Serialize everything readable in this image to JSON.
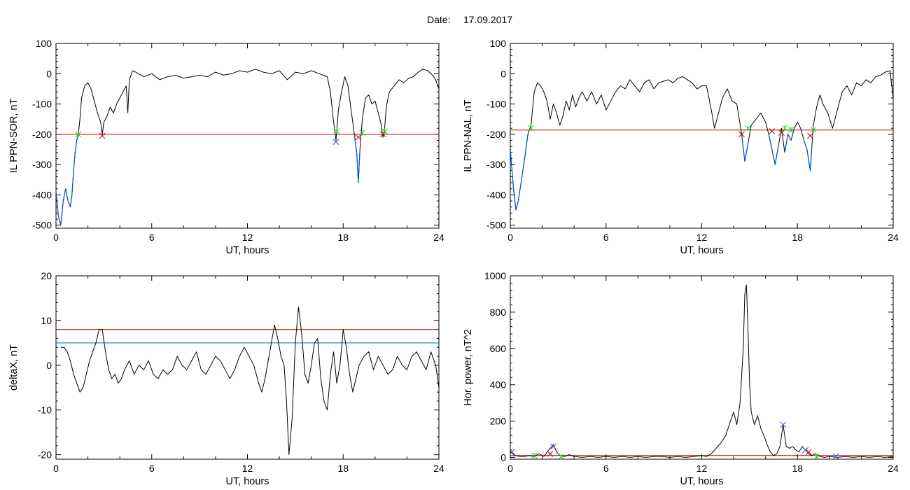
{
  "header": {
    "date_label": "Date:",
    "date_value": "17.09.2017"
  },
  "colors": {
    "trace": "#000000",
    "threshold": "#cc0000",
    "below_threshold": "#0055cc",
    "threshold2": "#0066cc",
    "cross_marker": "#cc0000",
    "green_marker": "#33cc33",
    "blue_marker": "#3355dd"
  },
  "chart_data": [
    {
      "type": "line",
      "panel": "top-left",
      "xlabel": "UT, hours",
      "ylabel": "IL PPN-SOR, nT",
      "xlim": [
        0,
        24
      ],
      "ylim": [
        -510,
        100
      ],
      "xticks": [
        0,
        6,
        12,
        18,
        24
      ],
      "yticks": [
        100,
        0,
        -100,
        -200,
        -300,
        -400,
        -500
      ],
      "threshold": -200,
      "series": [
        {
          "x": [
            0,
            0.15,
            0.3,
            0.45,
            0.6,
            0.75,
            0.9,
            1.0,
            1.1,
            1.2,
            1.3,
            1.4,
            1.5,
            1.6,
            1.8,
            2.0,
            2.2,
            2.4,
            2.6,
            2.8,
            2.9,
            3.0,
            3.2,
            3.4,
            3.6,
            3.8,
            4.0,
            4.2,
            4.4,
            4.5,
            4.6,
            4.8,
            5.0,
            5.5,
            6,
            6.5,
            7,
            7.5,
            8,
            8.5,
            9,
            9.5,
            10,
            10.5,
            11,
            11.5,
            12,
            12.5,
            13,
            13.5,
            14,
            14.5,
            15,
            15.5,
            16,
            16.5,
            17,
            17.2,
            17.4,
            17.55,
            17.7,
            17.9,
            18.1,
            18.3,
            18.5,
            18.7,
            18.85,
            18.95,
            19.05,
            19.2,
            19.4,
            19.6,
            19.8,
            20.0,
            20.2,
            20.35,
            20.5,
            20.6,
            20.7,
            20.9,
            21.2,
            21.5,
            21.8,
            22.1,
            22.4,
            22.7,
            23.0,
            23.3,
            23.6,
            23.8,
            24.0
          ],
          "y": [
            -390,
            -470,
            -500,
            -420,
            -380,
            -420,
            -440,
            -400,
            -320,
            -260,
            -220,
            -200,
            -150,
            -80,
            -40,
            -30,
            -50,
            -90,
            -130,
            -160,
            -200,
            -160,
            -140,
            -110,
            -130,
            -100,
            -80,
            -60,
            -40,
            -130,
            -20,
            10,
            5,
            -10,
            0,
            -20,
            -10,
            -5,
            -15,
            -10,
            -5,
            -10,
            5,
            -5,
            0,
            10,
            5,
            15,
            5,
            0,
            10,
            -20,
            5,
            0,
            10,
            0,
            -10,
            -60,
            -160,
            -220,
            -120,
            -60,
            -10,
            -40,
            -120,
            -200,
            -260,
            -360,
            -250,
            -150,
            -80,
            -70,
            -100,
            -90,
            -130,
            -160,
            -210,
            -180,
            -110,
            -60,
            -40,
            -20,
            -30,
            -15,
            -10,
            5,
            15,
            10,
            -5,
            -20,
            -50
          ],
          "markers": [
            {
              "x": 1.4,
              "y": -200,
              "color": "green"
            },
            {
              "x": 2.9,
              "y": -205,
              "color": "red"
            },
            {
              "x": 17.55,
              "y": -225,
              "color": "blue"
            },
            {
              "x": 17.6,
              "y": -190,
              "color": "green"
            },
            {
              "x": 18.95,
              "y": -210,
              "color": "red"
            },
            {
              "x": 19.2,
              "y": -195,
              "color": "green"
            },
            {
              "x": 20.5,
              "y": -200,
              "color": "red"
            },
            {
              "x": 20.6,
              "y": -190,
              "color": "green"
            }
          ]
        }
      ]
    },
    {
      "type": "line",
      "panel": "top-right",
      "xlabel": "UT, hours",
      "ylabel": "IL PPN-NAL, nT",
      "xlim": [
        0,
        24
      ],
      "ylim": [
        -510,
        100
      ],
      "xticks": [
        0,
        6,
        12,
        18,
        24
      ],
      "yticks": [
        100,
        0,
        -100,
        -200,
        -300,
        -400,
        -500
      ],
      "threshold": -186,
      "series": [
        {
          "x": [
            0,
            0.2,
            0.35,
            0.5,
            0.7,
            0.9,
            1.1,
            1.3,
            1.5,
            1.7,
            1.9,
            2.1,
            2.3,
            2.5,
            2.7,
            2.9,
            3.1,
            3.3,
            3.5,
            3.7,
            3.9,
            4.1,
            4.3,
            4.5,
            4.8,
            5.1,
            5.4,
            5.7,
            6.0,
            6.3,
            6.6,
            6.9,
            7.2,
            7.5,
            7.8,
            8.1,
            8.4,
            8.7,
            9.0,
            9.3,
            9.6,
            9.9,
            10.2,
            10.5,
            10.8,
            11.1,
            11.4,
            11.7,
            12.0,
            12.3,
            12.6,
            12.8,
            13.0,
            13.3,
            13.6,
            13.9,
            14.2,
            14.5,
            14.7,
            14.9,
            15.1,
            15.4,
            15.7,
            16.0,
            16.2,
            16.4,
            16.6,
            16.8,
            17.0,
            17.2,
            17.4,
            17.6,
            17.8,
            18.0,
            18.2,
            18.4,
            18.6,
            18.8,
            18.9,
            19.0,
            19.2,
            19.4,
            19.6,
            19.9,
            20.2,
            20.5,
            20.8,
            21.1,
            21.4,
            21.7,
            22.0,
            22.3,
            22.6,
            22.9,
            23.2,
            23.5,
            23.8,
            24.0
          ],
          "y": [
            -250,
            -380,
            -450,
            -420,
            -350,
            -280,
            -200,
            -170,
            -60,
            -30,
            -40,
            -60,
            -90,
            -150,
            -100,
            -130,
            -170,
            -140,
            -90,
            -120,
            -70,
            -110,
            -80,
            -60,
            -90,
            -60,
            -100,
            -70,
            -120,
            -90,
            -60,
            -40,
            -50,
            -20,
            -40,
            -60,
            -30,
            -20,
            -50,
            -30,
            -25,
            -20,
            -30,
            -15,
            -10,
            -20,
            -30,
            -50,
            -40,
            -40,
            -120,
            -180,
            -140,
            -80,
            -50,
            -90,
            -100,
            -200,
            -290,
            -230,
            -170,
            -150,
            -130,
            -160,
            -200,
            -250,
            -300,
            -240,
            -180,
            -260,
            -200,
            -220,
            -180,
            -160,
            -180,
            -220,
            -250,
            -320,
            -240,
            -170,
            -110,
            -70,
            -100,
            -130,
            -180,
            -120,
            -60,
            -40,
            -70,
            -30,
            -40,
            -20,
            -30,
            -10,
            -5,
            5,
            10,
            -80
          ],
          "markers": [
            {
              "x": 1.3,
              "y": -180,
              "color": "green"
            },
            {
              "x": 14.5,
              "y": -200,
              "color": "red"
            },
            {
              "x": 14.9,
              "y": -180,
              "color": "green"
            },
            {
              "x": 16.4,
              "y": -190,
              "color": "red"
            },
            {
              "x": 17.0,
              "y": -195,
              "color": "red"
            },
            {
              "x": 17.2,
              "y": -180,
              "color": "green"
            },
            {
              "x": 17.6,
              "y": -185,
              "color": "green"
            },
            {
              "x": 18.8,
              "y": -205,
              "color": "red"
            },
            {
              "x": 19.0,
              "y": -185,
              "color": "green"
            }
          ]
        }
      ]
    },
    {
      "type": "line",
      "panel": "bottom-left",
      "xlabel": "UT, hours",
      "ylabel": "deltaX, nT",
      "xlim": [
        0,
        24
      ],
      "ylim": [
        -21,
        20
      ],
      "xticks": [
        0,
        6,
        12,
        18,
        24
      ],
      "yticks": [
        20,
        10,
        0,
        -10,
        -20
      ],
      "threshold": 8,
      "threshold2": 5,
      "series": [
        {
          "x": [
            0.3,
            0.5,
            0.7,
            0.9,
            1.1,
            1.3,
            1.5,
            1.7,
            1.9,
            2.1,
            2.3,
            2.5,
            2.7,
            2.9,
            3.1,
            3.3,
            3.5,
            3.7,
            3.9,
            4.1,
            4.3,
            4.6,
            4.9,
            5.2,
            5.5,
            5.8,
            6.1,
            6.4,
            6.7,
            7.0,
            7.3,
            7.6,
            7.9,
            8.2,
            8.5,
            8.8,
            9.1,
            9.4,
            9.7,
            10.0,
            10.3,
            10.6,
            10.9,
            11.2,
            11.5,
            11.8,
            12.1,
            12.4,
            12.7,
            12.9,
            13.1,
            13.4,
            13.7,
            13.9,
            14.1,
            14.3,
            14.45,
            14.6,
            14.8,
            15.0,
            15.2,
            15.4,
            15.6,
            15.8,
            16.0,
            16.2,
            16.4,
            16.6,
            16.8,
            17.0,
            17.2,
            17.4,
            17.6,
            17.8,
            18.0,
            18.2,
            18.4,
            18.6,
            18.8,
            19.0,
            19.3,
            19.6,
            19.9,
            20.2,
            20.5,
            20.8,
            21.1,
            21.4,
            21.7,
            22.0,
            22.3,
            22.6,
            22.9,
            23.2,
            23.5,
            23.8,
            24.0
          ],
          "y": [
            4,
            4,
            3,
            1,
            -2,
            -4,
            -6,
            -5,
            -2,
            1,
            3,
            5,
            8,
            8,
            3,
            -1,
            -3,
            -2,
            -4,
            -3,
            -1,
            1,
            -2,
            0,
            -1,
            1,
            -2,
            -3,
            -1,
            -2,
            -1,
            2,
            0,
            -1,
            1,
            3,
            -1,
            -2,
            0,
            2,
            1,
            -1,
            -3,
            -1,
            2,
            4,
            2,
            0,
            -4,
            -6,
            -3,
            3,
            9,
            6,
            2,
            0,
            -8,
            -20,
            -12,
            5,
            13,
            7,
            -2,
            -4,
            0,
            5,
            6,
            -3,
            -8,
            -10,
            -2,
            3,
            -4,
            0,
            8,
            4,
            -2,
            -6,
            -3,
            0,
            2,
            3,
            -1,
            2,
            0,
            -2,
            -1,
            2,
            0,
            -1,
            2,
            3,
            1,
            -1,
            3,
            0,
            -5
          ]
        }
      ]
    },
    {
      "type": "line",
      "panel": "bottom-right",
      "xlabel": "UT, hours",
      "ylabel": "Hor. power, nT^2",
      "xlim": [
        0,
        24
      ],
      "ylim": [
        -10,
        1000
      ],
      "xticks": [
        0,
        6,
        12,
        18,
        24
      ],
      "yticks": [
        1000,
        800,
        600,
        400,
        200,
        0
      ],
      "threshold": 10,
      "series": [
        {
          "x": [
            0,
            0.3,
            0.6,
            0.9,
            1.2,
            1.5,
            1.8,
            2.1,
            2.4,
            2.7,
            2.9,
            3.1,
            3.4,
            3.7,
            4.0,
            4.5,
            5,
            5.5,
            6,
            6.5,
            7,
            7.5,
            8,
            8.5,
            9,
            9.5,
            10,
            10.5,
            11,
            11.5,
            12,
            12.3,
            12.6,
            12.9,
            13.2,
            13.5,
            13.8,
            14.0,
            14.2,
            14.4,
            14.6,
            14.7,
            14.8,
            14.9,
            15.0,
            15.1,
            15.3,
            15.5,
            15.7,
            15.9,
            16.1,
            16.3,
            16.5,
            16.7,
            16.9,
            17.1,
            17.2,
            17.3,
            17.5,
            17.7,
            17.9,
            18.1,
            18.3,
            18.5,
            18.7,
            18.9,
            19.1,
            19.4,
            19.7,
            20.0,
            20.5,
            21,
            21.5,
            22,
            22.5,
            23,
            23.5,
            24
          ],
          "y": [
            30,
            10,
            5,
            5,
            10,
            5,
            20,
            5,
            40,
            70,
            30,
            10,
            5,
            15,
            5,
            0,
            5,
            0,
            5,
            0,
            5,
            0,
            5,
            0,
            5,
            5,
            0,
            5,
            0,
            5,
            10,
            5,
            20,
            50,
            80,
            120,
            200,
            250,
            180,
            300,
            600,
            900,
            950,
            700,
            400,
            250,
            180,
            230,
            160,
            120,
            70,
            30,
            10,
            20,
            60,
            180,
            120,
            60,
            50,
            60,
            40,
            30,
            60,
            40,
            20,
            10,
            20,
            5,
            0,
            5,
            0,
            5,
            0,
            5,
            0,
            5,
            0,
            5
          ],
          "markers": [
            {
              "x": 0.1,
              "y": 30,
              "color": "blue"
            },
            {
              "x": 1.5,
              "y": 10,
              "color": "green"
            },
            {
              "x": 2.7,
              "y": 60,
              "color": "blue"
            },
            {
              "x": 2.5,
              "y": 20,
              "color": "red"
            },
            {
              "x": 3.2,
              "y": 5,
              "color": "green"
            },
            {
              "x": 17.1,
              "y": 180,
              "color": "blue"
            },
            {
              "x": 18.5,
              "y": 40,
              "color": "blue"
            },
            {
              "x": 18.7,
              "y": 30,
              "color": "red"
            },
            {
              "x": 19.2,
              "y": 5,
              "color": "green"
            },
            {
              "x": 20.4,
              "y": 5,
              "color": "blue"
            }
          ]
        }
      ]
    }
  ]
}
